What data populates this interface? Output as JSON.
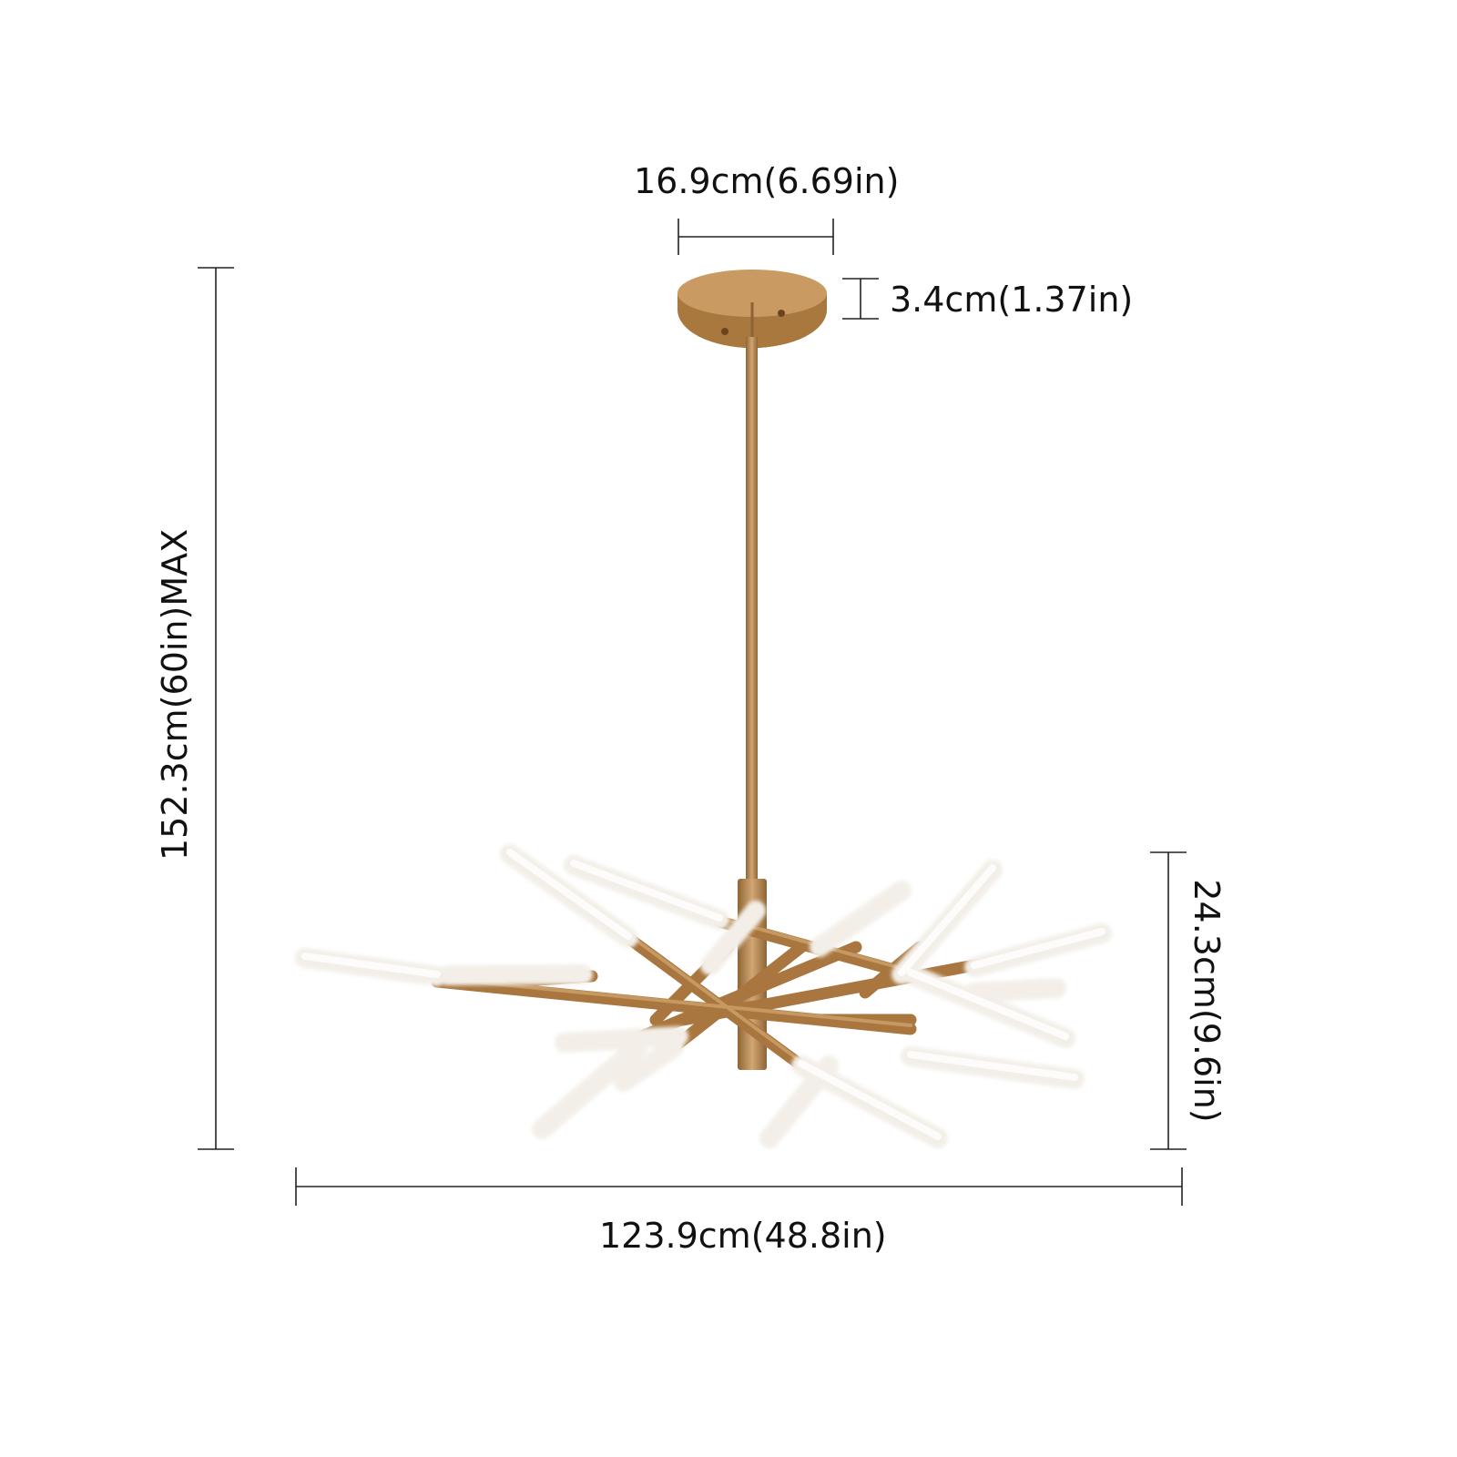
{
  "dimensions": {
    "canopy_width": "16.9cm(6.69in)",
    "canopy_height": "3.4cm(1.37in)",
    "overall_height": "152.3cm(60in)MAX",
    "fixture_height": "24.3cm(9.6in)",
    "fixture_width": "123.9cm(48.8in)"
  },
  "colors": {
    "brass": "#b98a52",
    "brass_dark": "#8d6334",
    "brass_light": "#d7ae7b",
    "tube": "#f6f2ec",
    "line": "#222222"
  }
}
